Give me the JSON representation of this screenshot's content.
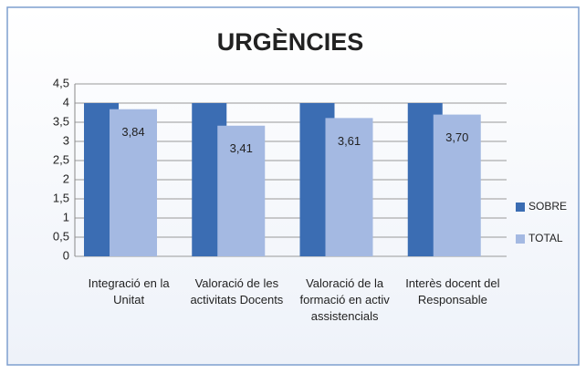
{
  "chart_data": {
    "type": "bar",
    "title": "URGÈNCIES",
    "categories": [
      "Integració en la Unitat",
      "Valoració de les activitats Docents",
      "Valoració de la formació en activ assistencials",
      "Interès docent del Responsable"
    ],
    "series": [
      {
        "name": "SOBRE",
        "color": "#3b6db3",
        "values": [
          4,
          4,
          4,
          4
        ]
      },
      {
        "name": "TOTAL",
        "color": "#a4b9e2",
        "values": [
          3.84,
          3.41,
          3.61,
          3.7
        ],
        "value_labels": [
          "3,84",
          "3,41",
          "3,61",
          "3,70"
        ]
      }
    ],
    "ylim": [
      0,
      4.5
    ],
    "yticks": [
      0,
      {
        "value": 0.5,
        "label": "0,5"
      },
      1,
      {
        "value": 1.5,
        "label": "1,5"
      },
      2,
      {
        "value": 2.5,
        "label": "2,5"
      },
      3,
      {
        "value": 3.5,
        "label": "3,5"
      },
      4,
      {
        "value": 4.5,
        "label": "4,5"
      }
    ],
    "grid": true,
    "legend": "right"
  }
}
